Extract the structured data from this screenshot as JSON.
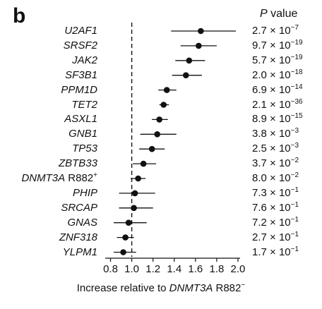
{
  "panel_label": "b",
  "pvalue_header": {
    "italic": "P",
    "rest": " value"
  },
  "chart_data": {
    "type": "scatter",
    "subtype": "forest-plot",
    "xlabel_prefix": "Increase relative to ",
    "xlabel_italic": "DNMT3A",
    "xlabel_suffix": " R882",
    "xlabel_sup": "−",
    "xlim": [
      0.75,
      2.02
    ],
    "xticks": [
      0.8,
      1.0,
      1.2,
      1.4,
      1.6,
      1.8,
      2.0
    ],
    "xtick_labels": [
      "0.8",
      "1.0",
      "1.2",
      "1.4",
      "1.6",
      "1.8",
      "2.0"
    ],
    "reference_line": 1.0,
    "rows": [
      {
        "gene": "U2AF1",
        "suffix": "",
        "sup": "",
        "estimate": 1.65,
        "lower": 1.37,
        "upper": 1.98,
        "p_mant": "2.7",
        "p_exp": "−7"
      },
      {
        "gene": "SRSF2",
        "suffix": "",
        "sup": "",
        "estimate": 1.63,
        "lower": 1.46,
        "upper": 1.8,
        "p_mant": "9.7",
        "p_exp": "−19"
      },
      {
        "gene": "JAK2",
        "suffix": "",
        "sup": "",
        "estimate": 1.54,
        "lower": 1.41,
        "upper": 1.69,
        "p_mant": "5.7",
        "p_exp": "−19"
      },
      {
        "gene": "SF3B1",
        "suffix": "",
        "sup": "",
        "estimate": 1.51,
        "lower": 1.38,
        "upper": 1.66,
        "p_mant": "2.0",
        "p_exp": "−18"
      },
      {
        "gene": "PPM1D",
        "suffix": "",
        "sup": "",
        "estimate": 1.33,
        "lower": 1.25,
        "upper": 1.42,
        "p_mant": "6.9",
        "p_exp": "−14"
      },
      {
        "gene": "TET2",
        "suffix": "",
        "sup": "",
        "estimate": 1.3,
        "lower": 1.26,
        "upper": 1.35,
        "p_mant": "2.1",
        "p_exp": "−36"
      },
      {
        "gene": "ASXL1",
        "suffix": "",
        "sup": "",
        "estimate": 1.26,
        "lower": 1.19,
        "upper": 1.34,
        "p_mant": "8.9",
        "p_exp": "−15"
      },
      {
        "gene": "GNB1",
        "suffix": "",
        "sup": "",
        "estimate": 1.24,
        "lower": 1.08,
        "upper": 1.42,
        "p_mant": "3.8",
        "p_exp": "−3"
      },
      {
        "gene": "TP53",
        "suffix": "",
        "sup": "",
        "estimate": 1.19,
        "lower": 1.07,
        "upper": 1.31,
        "p_mant": "2.5",
        "p_exp": "−3"
      },
      {
        "gene": "ZBTB33",
        "suffix": "",
        "sup": "",
        "estimate": 1.11,
        "lower": 1.01,
        "upper": 1.23,
        "p_mant": "3.7",
        "p_exp": "−2"
      },
      {
        "gene": "DNMT3A",
        "suffix": " R882",
        "sup": "+",
        "estimate": 1.06,
        "lower": 0.99,
        "upper": 1.13,
        "p_mant": "8.0",
        "p_exp": "−2"
      },
      {
        "gene": "PHIP",
        "suffix": "",
        "sup": "",
        "estimate": 1.03,
        "lower": 0.88,
        "upper": 1.22,
        "p_mant": "7.3",
        "p_exp": "−1"
      },
      {
        "gene": "SRCAP",
        "suffix": "",
        "sup": "",
        "estimate": 1.02,
        "lower": 0.88,
        "upper": 1.2,
        "p_mant": "7.6",
        "p_exp": "−1"
      },
      {
        "gene": "GNAS",
        "suffix": "",
        "sup": "",
        "estimate": 0.97,
        "lower": 0.83,
        "upper": 1.14,
        "p_mant": "7.2",
        "p_exp": "−1"
      },
      {
        "gene": "ZNF318",
        "suffix": "",
        "sup": "",
        "estimate": 0.94,
        "lower": 0.86,
        "upper": 1.02,
        "p_mant": "2.7",
        "p_exp": "−1"
      },
      {
        "gene": "YLPM1",
        "suffix": "",
        "sup": "",
        "estimate": 0.92,
        "lower": 0.83,
        "upper": 1.04,
        "p_mant": "1.7",
        "p_exp": "−1"
      }
    ]
  }
}
